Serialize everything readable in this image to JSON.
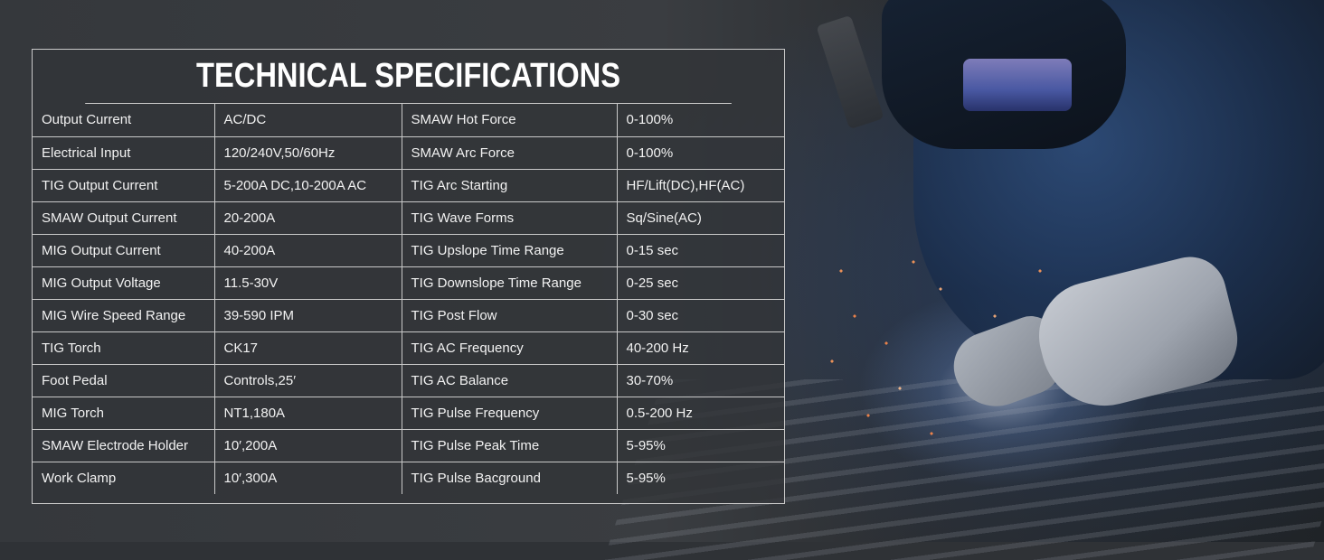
{
  "title": "TECHNICAL SPECIFICATIONS",
  "colors": {
    "panel_border": "#c9c9c9",
    "text": "#f2f2f2",
    "panel_bg": "#323438"
  },
  "rows": [
    {
      "label_left": "Output Current",
      "value_left": "AC/DC",
      "label_right": "SMAW Hot Force",
      "value_right": "0-100%"
    },
    {
      "label_left": "Electrical Input",
      "value_left": "120/240V,50/60Hz",
      "label_right": "SMAW Arc Force",
      "value_right": "0-100%"
    },
    {
      "label_left": "TIG Output Current",
      "value_left": "5-200A DC,10-200A AC",
      "label_right": "TIG Arc Starting",
      "value_right": "HF/Lift(DC),HF(AC)"
    },
    {
      "label_left": "SMAW Output Current",
      "value_left": "20-200A",
      "label_right": "TIG Wave Forms",
      "value_right": "Sq/Sine(AC)"
    },
    {
      "label_left": "MIG Output Current",
      "value_left": "40-200A",
      "label_right": "TIG Upslope Time Range",
      "value_right": "0-15 sec"
    },
    {
      "label_left": "MIG Output Voltage",
      "value_left": "11.5-30V",
      "label_right": "TIG Downslope Time Range",
      "value_right": "0-25 sec"
    },
    {
      "label_left": "MIG Wire Speed Range",
      "value_left": "39-590 IPM",
      "label_right": "TIG Post Flow",
      "value_right": "0-30 sec"
    },
    {
      "label_left": "TIG Torch",
      "value_left": "CK17",
      "label_right": "TIG AC Frequency",
      "value_right": "40-200 Hz"
    },
    {
      "label_left": "Foot Pedal",
      "value_left": "Controls,25′",
      "label_right": "TIG AC Balance",
      "value_right": "30-70%"
    },
    {
      "label_left": "MIG Torch",
      "value_left": "NT1,180A",
      "label_right": "TIG Pulse Frequency",
      "value_right": "0.5-200 Hz"
    },
    {
      "label_left": "SMAW Electrode Holder",
      "value_left": "10′,200A",
      "label_right": "TIG Pulse Peak Time",
      "value_right": "5-95%"
    },
    {
      "label_left": "Work Clamp",
      "value_left": "10′,300A",
      "label_right": "TIG Pulse Bacground",
      "value_right": "5-95%"
    }
  ]
}
